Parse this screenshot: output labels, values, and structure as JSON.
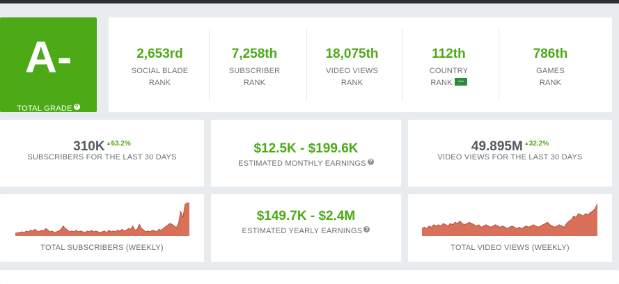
{
  "grade": {
    "letter": "A-",
    "label": "TOTAL GRADE",
    "help": "?"
  },
  "ranks": [
    {
      "value": "2,653rd",
      "line1": "SOCIAL BLADE",
      "line2": "RANK"
    },
    {
      "value": "7,258th",
      "line1": "SUBSCRIBER",
      "line2": "RANK"
    },
    {
      "value": "18,075th",
      "line1": "VIDEO VIEWS",
      "line2": "RANK"
    },
    {
      "value": "112th",
      "line1": "COUNTRY",
      "line2": "RANK"
    },
    {
      "value": "786th",
      "line1": "GAMES",
      "line2": "RANK"
    }
  ],
  "subs30": {
    "value": "310K",
    "change": "63.2%",
    "label": "SUBSCRIBERS FOR THE LAST 30 DAYS"
  },
  "monthly": {
    "value": "$12.5K - $199.6K",
    "label": "ESTIMATED MONTHLY EARNINGS",
    "help": "?"
  },
  "views30": {
    "value": "49.895M",
    "change": "32.2%",
    "label": "VIDEO VIEWS FOR THE LAST 30 DAYS"
  },
  "yearly": {
    "value": "$149.7K - $2.4M",
    "label": "ESTIMATED YEARLY EARNINGS",
    "help": "?"
  },
  "subs_chart_label": "TOTAL SUBSCRIBERS (WEEKLY)",
  "views_chart_label": "TOTAL VIDEO VIEWS (WEEKLY)",
  "colors": {
    "accent": "#4caa16",
    "spark_fill": "#d9705a",
    "spark_line": "#b8503c"
  },
  "chart_data": [
    {
      "type": "area",
      "title": "TOTAL SUBSCRIBERS (WEEKLY)",
      "values": [
        3,
        4,
        4,
        5,
        4,
        6,
        5,
        7,
        6,
        8,
        6,
        5,
        7,
        6,
        9,
        7,
        5,
        6,
        4,
        5,
        6,
        8,
        12,
        9,
        7,
        5,
        6,
        5,
        7,
        5,
        6,
        5,
        4,
        6,
        5,
        7,
        5,
        6,
        5,
        4,
        5,
        6,
        4,
        7,
        5,
        6,
        5,
        7,
        6,
        8,
        6,
        7,
        9,
        8,
        12,
        7,
        8,
        14,
        9,
        7,
        5,
        6,
        5,
        7,
        6,
        5,
        8,
        7,
        9,
        11,
        13,
        15,
        14,
        12,
        10,
        15,
        30,
        22,
        38,
        40,
        39
      ],
      "ylim": [
        0,
        42
      ]
    },
    {
      "type": "area",
      "title": "TOTAL VIDEO VIEWS (WEEKLY)",
      "values": [
        6,
        7,
        6,
        8,
        7,
        9,
        8,
        9,
        8,
        10,
        9,
        8,
        10,
        9,
        11,
        10,
        12,
        10,
        9,
        10,
        11,
        10,
        9,
        8,
        9,
        7,
        8,
        9,
        8,
        7,
        8,
        9,
        8,
        7,
        8,
        7,
        6,
        7,
        8,
        7,
        6,
        7,
        6,
        7,
        8,
        7,
        8,
        9,
        8,
        7,
        8,
        9,
        10,
        11,
        9,
        8,
        7,
        8,
        9,
        8,
        7,
        10,
        12,
        13,
        16,
        15,
        18,
        17,
        16,
        18,
        17,
        19,
        20,
        22,
        26
      ],
      "ylim": [
        0,
        28
      ]
    }
  ]
}
